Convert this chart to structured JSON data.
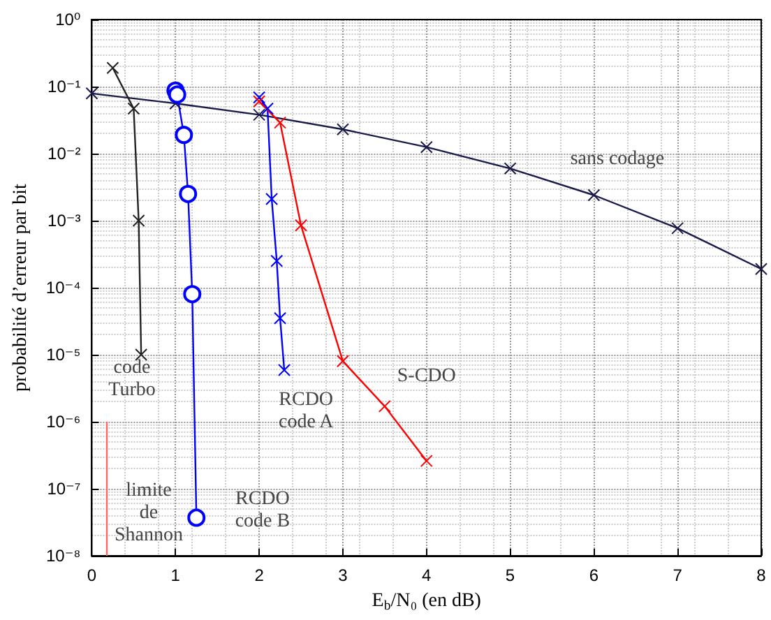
{
  "chart_data": {
    "type": "line",
    "xlabel": "E$_{b}$/N₀ (en dB)",
    "ylabel": "probabilité d’erreur par bit",
    "xlim": [
      0,
      8
    ],
    "xticks": [
      0,
      1,
      2,
      3,
      4,
      5,
      6,
      7,
      8
    ],
    "ylim": [
      1e-08,
      1
    ],
    "log": "y",
    "yticks": [
      {
        "value": 1e-08,
        "label": "10⁻⁸"
      },
      {
        "value": 1e-07,
        "label": "10⁻⁷"
      },
      {
        "value": 1e-06,
        "label": "10⁻⁶"
      },
      {
        "value": 1e-05,
        "label": "10⁻⁵"
      },
      {
        "value": 0.0001,
        "label": "10⁻⁴"
      },
      {
        "value": 0.001,
        "label": "10⁻³"
      },
      {
        "value": 0.01,
        "label": "10⁻²"
      },
      {
        "value": 0.1,
        "label": "10⁻¹"
      },
      {
        "value": 1,
        "label": "10⁰"
      }
    ],
    "grid": true,
    "line_style": "solid",
    "series": [
      {
        "color": "#1a1a4a",
        "marker": "cross",
        "x": [
          0,
          1,
          2,
          3,
          4,
          5,
          6,
          7,
          8
        ],
        "values": [
          0.079,
          0.056,
          0.038,
          0.023,
          0.0125,
          0.006,
          0.0024,
          0.00077,
          0.00019
        ]
      },
      {
        "color": "#222222",
        "marker": "cross",
        "x": [
          0.25,
          0.5,
          0.56,
          0.59
        ],
        "values": [
          0.19,
          0.047,
          0.001,
          1e-05
        ]
      },
      {
        "color": "#0000ff",
        "marker": "circle",
        "x": [
          1.0,
          1.02,
          1.1,
          1.15,
          1.2,
          1.25
        ],
        "values": [
          0.087,
          0.076,
          0.019,
          0.0025,
          8e-05,
          3.7e-08
        ]
      },
      {
        "color": "#0000ff",
        "marker": "cross",
        "x": [
          2.0,
          2.1,
          2.15,
          2.21,
          2.25,
          2.3
        ],
        "values": [
          0.069,
          0.047,
          0.0021,
          0.00025,
          3.5e-05,
          5.9e-06
        ]
      },
      {
        "color": "#ff0000",
        "marker": "cross",
        "x": [
          2.0,
          2.25,
          2.5,
          3.0,
          3.5,
          4.0
        ],
        "values": [
          0.06,
          0.029,
          0.00085,
          8e-06,
          1.7e-06,
          2.6e-07
        ]
      },
      {
        "color": "#ff6666",
        "marker": "none",
        "x": [
          0.18,
          0.18
        ],
        "values": [
          1e-06,
          1e-08
        ]
      }
    ],
    "annotations": [
      "sans codage",
      "code\nTurbo",
      "RCDO\ncode A",
      "S-CDO",
      "limite\nde\nShannon",
      "RCDO\ncode B"
    ]
  }
}
